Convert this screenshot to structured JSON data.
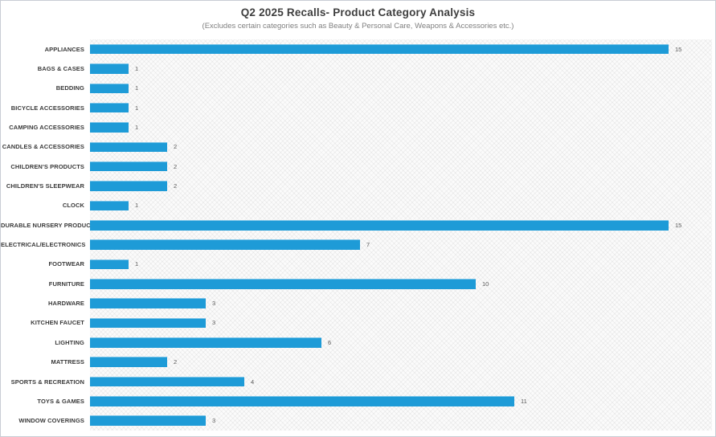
{
  "chart_data": {
    "type": "bar",
    "orientation": "horizontal",
    "title": "Q2 2025 Recalls- Product Category Analysis",
    "subtitle": "(Excludes certain categories such as Beauty & Personal Care, Weapons & Accessories etc.)",
    "categories": [
      "APPLIANCES",
      "BAGS & CASES",
      "BEDDING",
      "BICYCLE ACCESSORIES",
      "CAMPING ACCESSORIES",
      "CANDLES & ACCESSORIES",
      "CHILDREN'S PRODUCTS",
      "CHILDREN'S SLEEPWEAR",
      "CLOCK",
      "DURABLE NURSERY PRODUCT",
      "ELECTRICAL/ELECTRONICS",
      "FOOTWEAR",
      "FURNITURE",
      "HARDWARE",
      "KITCHEN FAUCET",
      "LIGHTING",
      "MATTRESS",
      "SPORTS & RECREATION",
      "TOYS & GAMES",
      "WINDOW COVERINGS"
    ],
    "values": [
      15,
      1,
      1,
      1,
      1,
      2,
      2,
      2,
      1,
      15,
      7,
      1,
      10,
      3,
      3,
      6,
      2,
      4,
      11,
      3
    ],
    "xlim": [
      0,
      16
    ],
    "data_labels": true,
    "gridlines": false,
    "legend": false,
    "bar_color": "#1e9bd7",
    "bar_highlight_color": "#79c3e7",
    "label_color": "#3a3a3a",
    "value_label_color": "#595959",
    "plot_background": "hatched light gray"
  }
}
